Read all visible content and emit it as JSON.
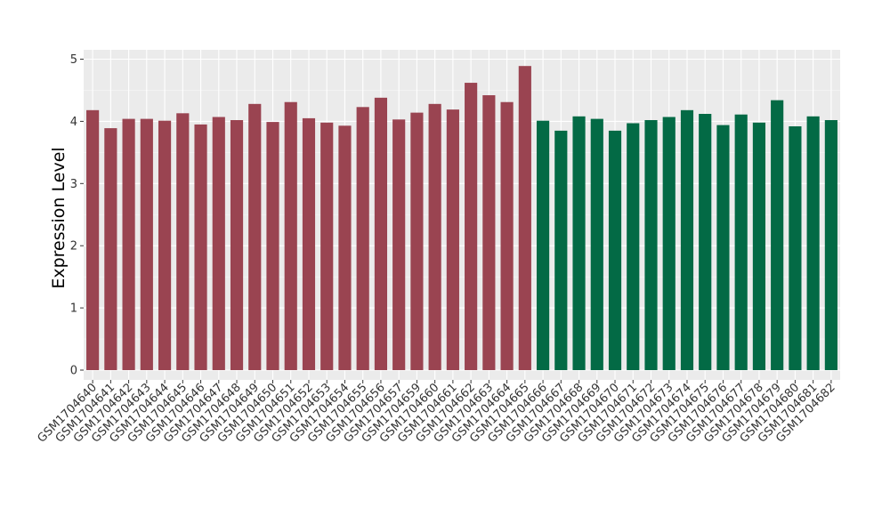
{
  "chart_data": {
    "type": "bar",
    "ylabel": "Expression Level",
    "xlabel": "",
    "ylim": [
      -0.16,
      5.13
    ],
    "yticks": [
      0,
      1,
      2,
      3,
      4,
      5
    ],
    "grid": true,
    "colors": {
      "group1": "#9a4451",
      "group2": "#036a45",
      "panel": "#ebebeb",
      "grid": "#ffffff"
    },
    "categories": [
      "GSM1704640",
      "GSM1704641",
      "GSM1704642",
      "GSM1704643",
      "GSM1704644",
      "GSM1704645",
      "GSM1704646",
      "GSM1704647",
      "GSM1704648",
      "GSM1704649",
      "GSM1704650",
      "GSM1704651",
      "GSM1704652",
      "GSM1704653",
      "GSM1704654",
      "GSM1704655",
      "GSM1704656",
      "GSM1704657",
      "GSM1704659",
      "GSM1704660",
      "GSM1704661",
      "GSM1704662",
      "GSM1704663",
      "GSM1704664",
      "GSM1704665",
      "GSM1704666",
      "GSM1704667",
      "GSM1704668",
      "GSM1704669",
      "GSM1704670",
      "GSM1704671",
      "GSM1704672",
      "GSM1704673",
      "GSM1704674",
      "GSM1704675",
      "GSM1704676",
      "GSM1704677",
      "GSM1704678",
      "GSM1704679",
      "GSM1704680",
      "GSM1704681",
      "GSM1704682"
    ],
    "values": [
      4.18,
      3.89,
      4.04,
      4.04,
      4.01,
      4.13,
      3.95,
      4.07,
      4.02,
      4.28,
      3.99,
      4.31,
      4.05,
      3.98,
      3.93,
      4.23,
      4.38,
      4.03,
      4.14,
      4.28,
      4.19,
      4.62,
      4.42,
      4.31,
      4.89,
      4.01,
      3.85,
      4.08,
      4.04,
      3.85,
      3.97,
      4.02,
      4.07,
      4.18,
      4.12,
      3.94,
      4.11,
      3.98,
      4.34,
      3.92,
      4.08,
      4.02
    ],
    "groups": [
      1,
      1,
      1,
      1,
      1,
      1,
      1,
      1,
      1,
      1,
      1,
      1,
      1,
      1,
      1,
      1,
      1,
      1,
      1,
      1,
      1,
      1,
      1,
      1,
      1,
      2,
      2,
      2,
      2,
      2,
      2,
      2,
      2,
      2,
      2,
      2,
      2,
      2,
      2,
      2,
      2,
      2
    ]
  }
}
